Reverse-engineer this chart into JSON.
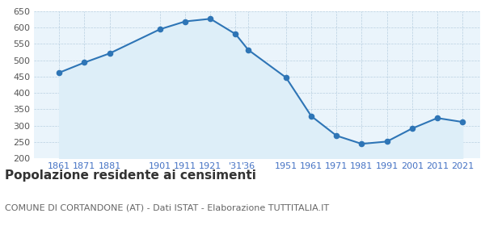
{
  "years": [
    1861,
    1871,
    1881,
    1901,
    1911,
    1921,
    1931,
    1936,
    1951,
    1961,
    1971,
    1981,
    1991,
    2001,
    2011,
    2021
  ],
  "population": [
    462,
    493,
    521,
    595,
    619,
    627,
    580,
    532,
    447,
    329,
    269,
    244,
    251,
    291,
    323,
    311
  ],
  "line_color": "#2e75b6",
  "fill_color": "#ddeef8",
  "marker_color": "#2e75b6",
  "background_color": "#ffffff",
  "plot_bg_color": "#eaf4fb",
  "grid_color": "#b8cfe0",
  "title": "Popolazione residente ai censimenti",
  "subtitle": "COMUNE DI CORTANDONE (AT) - Dati ISTAT - Elaborazione TUTTITALIA.IT",
  "title_fontsize": 11,
  "subtitle_fontsize": 8,
  "ylabel_min": 200,
  "ylabel_max": 650,
  "ylabel_step": 50,
  "tick_label_color": "#4472c4",
  "ytick_label_color": "#555555",
  "tick_label_fontsize": 8,
  "xlim_min": 1851,
  "xlim_max": 2028,
  "x_tick_positions": [
    1861,
    1871,
    1881,
    1901,
    1911,
    1921,
    1931,
    1936,
    1951,
    1961,
    1971,
    1981,
    1991,
    2001,
    2011,
    2021
  ],
  "x_tick_labels": [
    "1861",
    "1871",
    "1881",
    "1901",
    "1911",
    "1921",
    "'31",
    "'36",
    "1951",
    "1961",
    "1971",
    "1981",
    "1991",
    "2001",
    "2011",
    "2021"
  ],
  "marker_size": 20
}
